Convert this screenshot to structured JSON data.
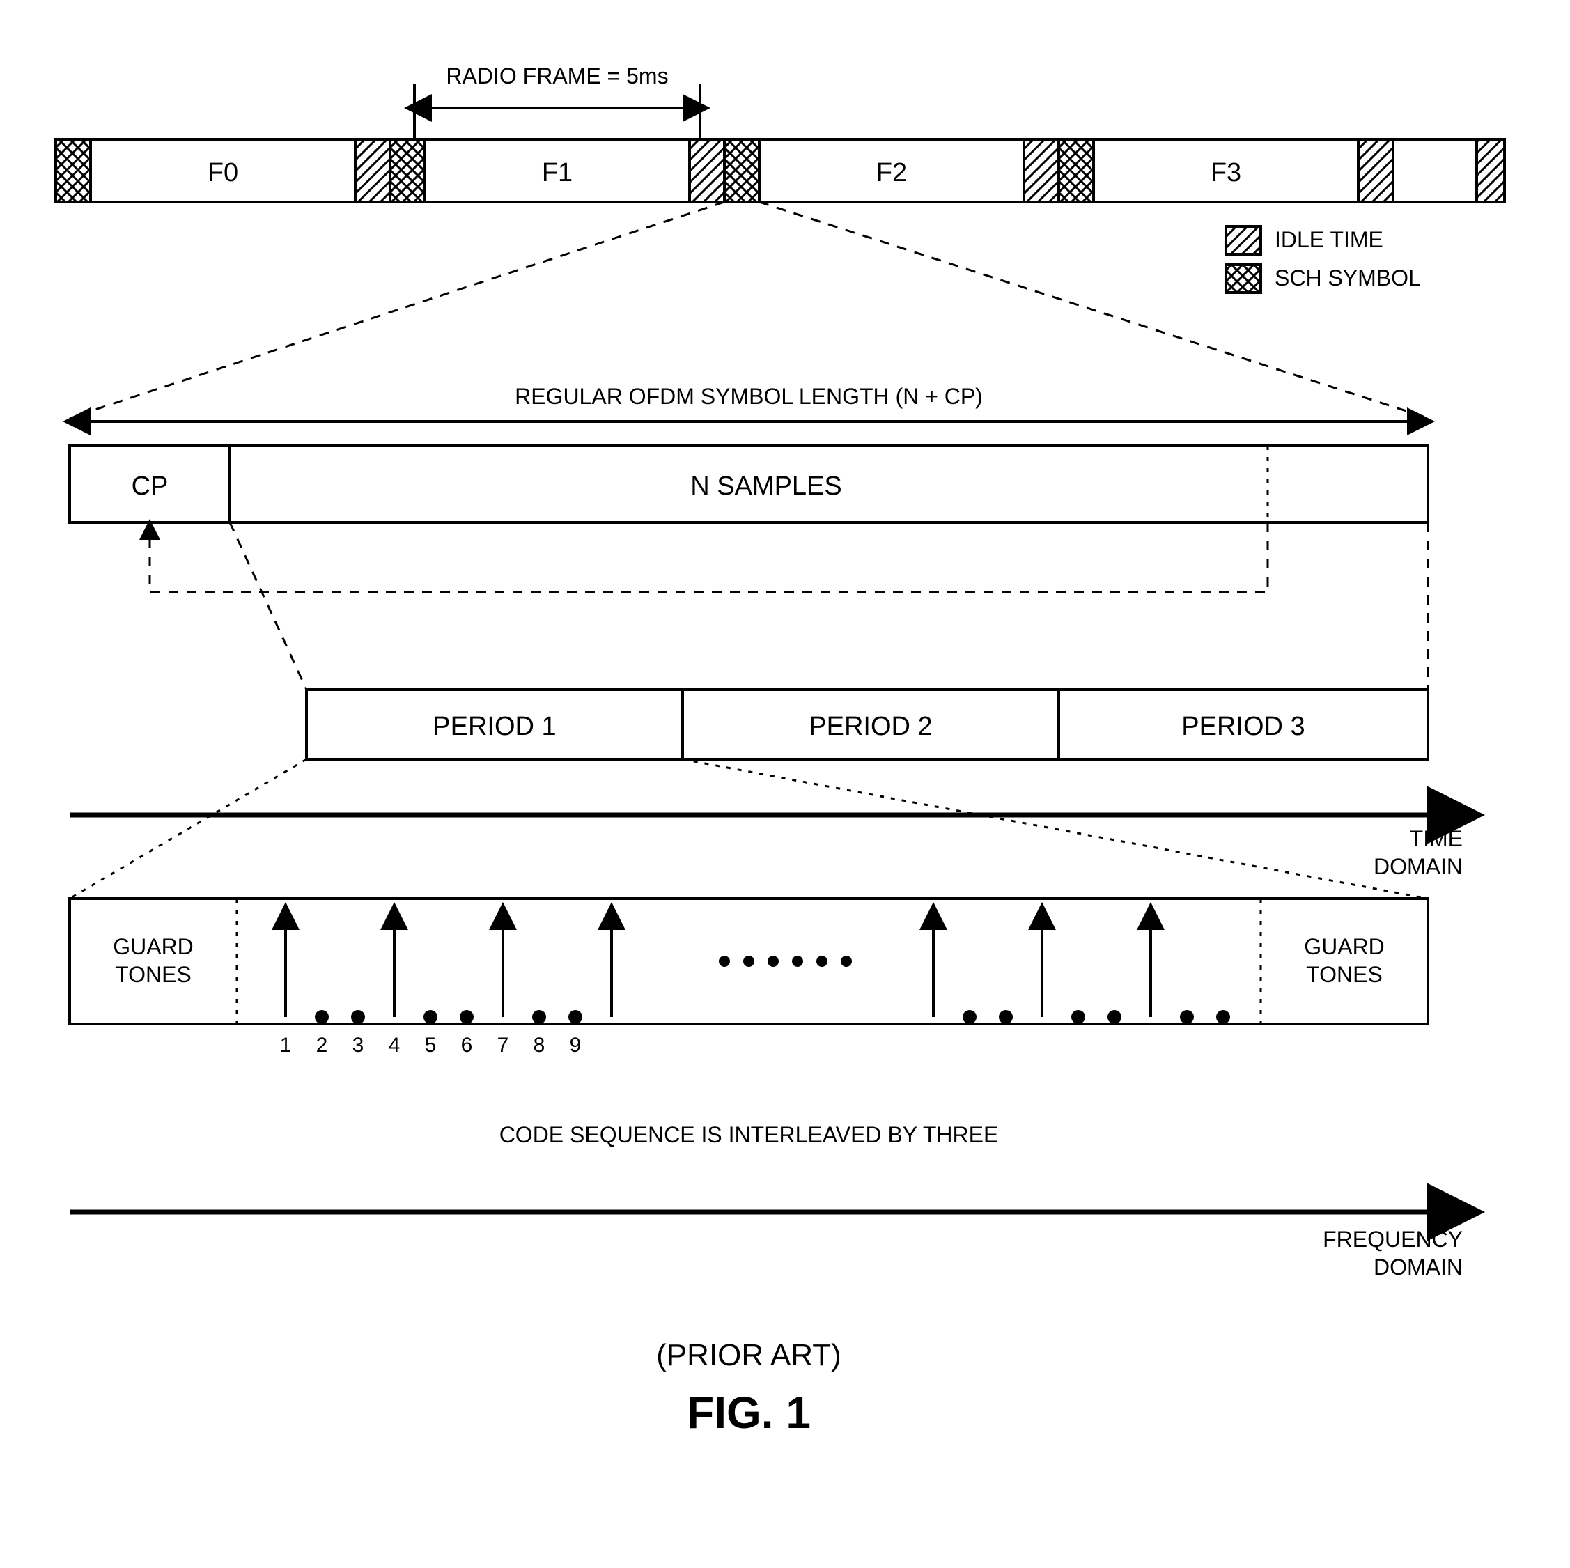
{
  "radio_frame_label": "RADIO FRAME = 5ms",
  "frames": {
    "f0": "F0",
    "f1": "F1",
    "f2": "F2",
    "f3": "F3"
  },
  "legend": {
    "idle_time": "IDLE TIME",
    "sch_symbol": "SCH SYMBOL"
  },
  "ofdm_label": "REGULAR OFDM SYMBOL LENGTH (N + CP)",
  "cp_label": "CP",
  "nsamples_label": "N SAMPLES",
  "periods": {
    "p1": "PERIOD 1",
    "p2": "PERIOD 2",
    "p3": "PERIOD 3"
  },
  "time_domain": "TIME\nDOMAIN",
  "guard_tones": "GUARD\nTONES",
  "code_seq": "CODE SEQUENCE IS INTERLEAVED BY THREE",
  "freq_domain": "FREQUENCY\nDOMAIN",
  "prior_art": "(PRIOR ART)",
  "fig_label": "FIG. 1",
  "tone_numbers": [
    "1",
    "2",
    "3",
    "4",
    "5",
    "6",
    "7",
    "8",
    "9"
  ],
  "colors": {
    "stroke": "#000000",
    "bg": "#ffffff"
  },
  "style": {
    "text_size_label": 32,
    "text_size_cell": 38,
    "text_size_fig": 64,
    "line_w": 4,
    "line_w_heavy": 7
  }
}
